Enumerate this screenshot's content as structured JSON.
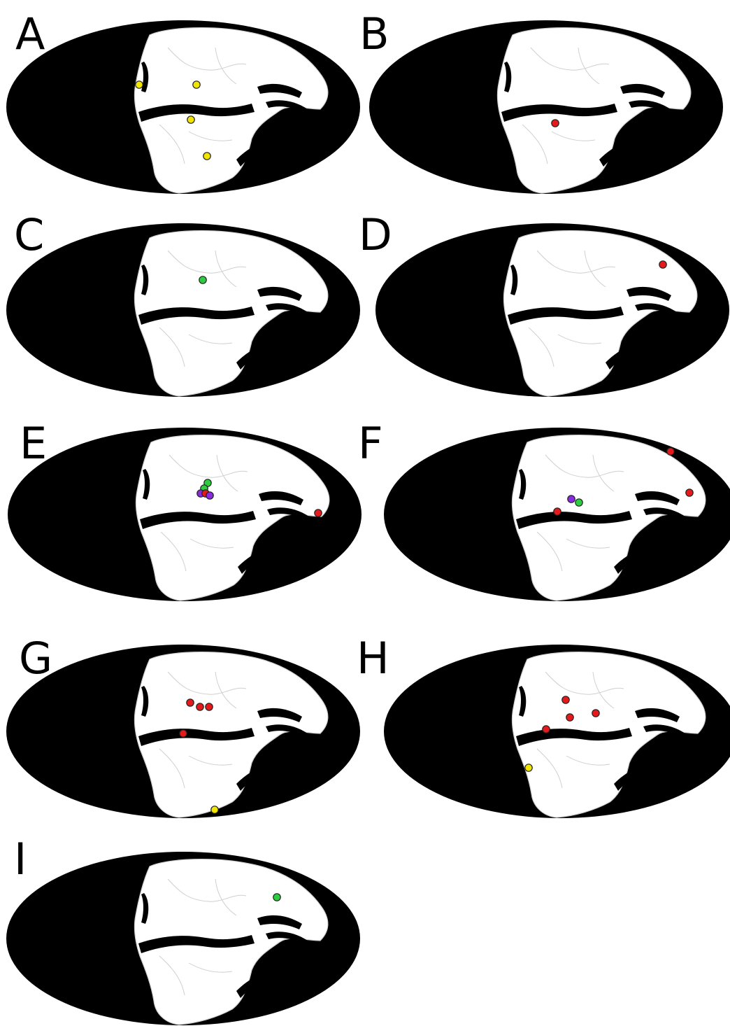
{
  "colors": {
    "yellow": "#f2e600",
    "red": "#e41a1c",
    "green": "#2ecc40",
    "purple": "#8a2be2",
    "ocean": "#000000",
    "land": "#ffffff"
  },
  "panels": [
    {
      "label": "A",
      "sites": [
        {
          "color": "yellow"
        },
        {
          "color": "yellow"
        },
        {
          "color": "yellow"
        },
        {
          "color": "yellow"
        }
      ]
    },
    {
      "label": "B",
      "sites": [
        {
          "color": "red"
        }
      ]
    },
    {
      "label": "C",
      "sites": [
        {
          "color": "green"
        }
      ]
    },
    {
      "label": "D",
      "sites": [
        {
          "color": "red"
        }
      ]
    },
    {
      "label": "E",
      "sites": [
        {
          "color": "green"
        },
        {
          "color": "green"
        },
        {
          "color": "purple"
        },
        {
          "color": "red"
        },
        {
          "color": "purple"
        },
        {
          "color": "red"
        }
      ]
    },
    {
      "label": "F",
      "sites": [
        {
          "color": "red"
        },
        {
          "color": "red"
        },
        {
          "color": "purple"
        },
        {
          "color": "green"
        },
        {
          "color": "red"
        }
      ]
    },
    {
      "label": "G",
      "sites": [
        {
          "color": "red"
        },
        {
          "color": "red"
        },
        {
          "color": "red"
        },
        {
          "color": "red"
        },
        {
          "color": "yellow"
        }
      ]
    },
    {
      "label": "H",
      "sites": [
        {
          "color": "red"
        },
        {
          "color": "red"
        },
        {
          "color": "red"
        },
        {
          "color": "red"
        },
        {
          "color": "yellow"
        }
      ]
    },
    {
      "label": "I",
      "sites": [
        {
          "color": "green"
        }
      ]
    }
  ]
}
